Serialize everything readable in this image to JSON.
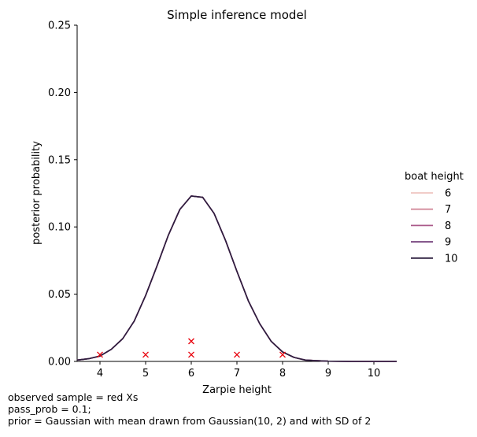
{
  "chart_data": {
    "type": "line",
    "title": "Simple inference model",
    "xlabel": "Zarpie height",
    "ylabel": "posterior probability",
    "xlim": [
      3.5,
      10.5
    ],
    "ylim": [
      0,
      0.25
    ],
    "xticks": [
      4,
      5,
      6,
      7,
      8,
      9,
      10
    ],
    "yticks": [
      "0.00",
      "0.05",
      "0.10",
      "0.15",
      "0.20",
      "0.25"
    ],
    "grid": false,
    "legend": {
      "title": "boat height",
      "placement": "right",
      "entries": [
        {
          "label": "6",
          "color": "#efc5c0"
        },
        {
          "label": "7",
          "color": "#d38b9c"
        },
        {
          "label": "8",
          "color": "#aa5989"
        },
        {
          "label": "9",
          "color": "#6b3574"
        },
        {
          "label": "10",
          "color": "#2d1e3e"
        }
      ]
    },
    "x": [
      3.5,
      3.75,
      4.0,
      4.25,
      4.5,
      4.75,
      5.0,
      5.25,
      5.5,
      5.75,
      6.0,
      6.25,
      6.5,
      6.75,
      7.0,
      7.25,
      7.5,
      7.75,
      8.0,
      8.25,
      8.5,
      8.75,
      9.0,
      9.25,
      9.5,
      9.75,
      10.0,
      10.25,
      10.5
    ],
    "series": [
      {
        "name": "6",
        "color": "#efc5c0",
        "values": [
          0.001,
          0.002,
          0.004,
          0.009,
          0.017,
          0.03,
          0.049,
          0.071,
          0.094,
          0.113,
          0.123,
          0.122,
          0.11,
          0.09,
          0.067,
          0.045,
          0.028,
          0.015,
          0.007,
          0.003,
          0.001,
          0.0005,
          0.0002,
          0.0001,
          0.0,
          0.0,
          0.0,
          0.0,
          0.0
        ]
      },
      {
        "name": "7",
        "color": "#d38b9c",
        "values": [
          0.001,
          0.002,
          0.004,
          0.009,
          0.017,
          0.03,
          0.049,
          0.071,
          0.094,
          0.113,
          0.123,
          0.122,
          0.11,
          0.09,
          0.067,
          0.045,
          0.028,
          0.015,
          0.007,
          0.003,
          0.001,
          0.0005,
          0.0002,
          0.0001,
          0.0,
          0.0,
          0.0,
          0.0,
          0.0
        ]
      },
      {
        "name": "8",
        "color": "#aa5989",
        "values": [
          0.001,
          0.002,
          0.004,
          0.009,
          0.017,
          0.03,
          0.049,
          0.071,
          0.094,
          0.113,
          0.123,
          0.122,
          0.11,
          0.09,
          0.067,
          0.045,
          0.028,
          0.015,
          0.007,
          0.003,
          0.001,
          0.0005,
          0.0002,
          0.0001,
          0.0,
          0.0,
          0.0,
          0.0,
          0.0
        ]
      },
      {
        "name": "9",
        "color": "#6b3574",
        "values": [
          0.001,
          0.002,
          0.004,
          0.009,
          0.017,
          0.03,
          0.049,
          0.071,
          0.094,
          0.113,
          0.123,
          0.122,
          0.11,
          0.09,
          0.067,
          0.045,
          0.028,
          0.015,
          0.007,
          0.003,
          0.001,
          0.0005,
          0.0002,
          0.0001,
          0.0,
          0.0,
          0.0,
          0.0,
          0.0
        ]
      },
      {
        "name": "10",
        "color": "#2d1e3e",
        "values": [
          0.001,
          0.002,
          0.004,
          0.009,
          0.017,
          0.03,
          0.049,
          0.071,
          0.094,
          0.113,
          0.123,
          0.122,
          0.11,
          0.09,
          0.067,
          0.045,
          0.028,
          0.015,
          0.007,
          0.003,
          0.001,
          0.0005,
          0.0002,
          0.0001,
          0.0,
          0.0,
          0.0,
          0.0,
          0.0
        ]
      }
    ],
    "observed_samples": {
      "color": "#e8000b",
      "marker": "x",
      "points": [
        {
          "x": 4,
          "y": 0.005
        },
        {
          "x": 5,
          "y": 0.005
        },
        {
          "x": 6,
          "y": 0.005
        },
        {
          "x": 6,
          "y": 0.015
        },
        {
          "x": 7,
          "y": 0.005
        },
        {
          "x": 8,
          "y": 0.005
        }
      ]
    }
  },
  "caption": {
    "line1": "observed sample = red Xs",
    "line2": "pass_prob = 0.1;",
    "line3": "prior = Gaussian with mean drawn from Gaussian(10, 2) and with SD of 2"
  }
}
